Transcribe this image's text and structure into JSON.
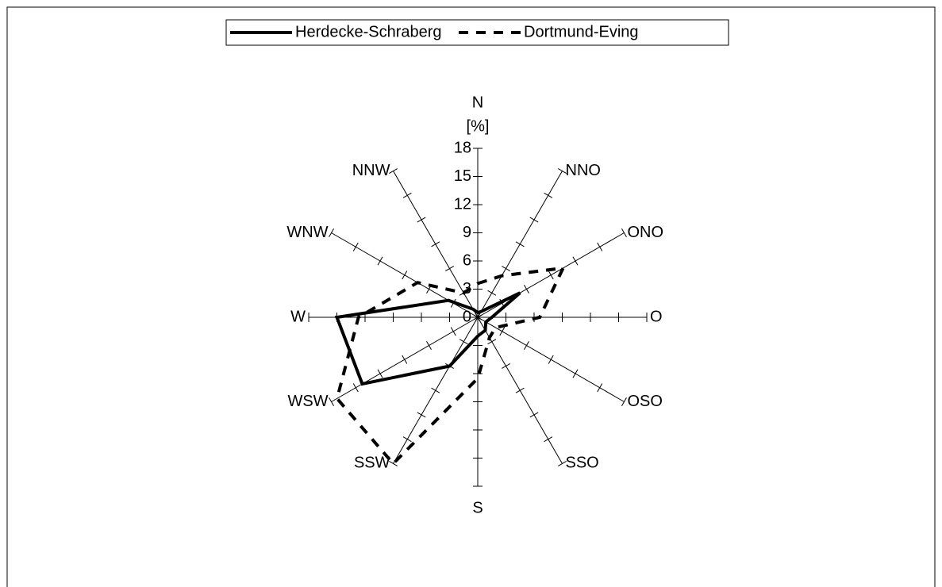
{
  "chart_data": {
    "type": "radar",
    "axis_title": "N",
    "unit_label": "[%]",
    "categories": [
      "N",
      "NNO",
      "ONO",
      "O",
      "OSO",
      "SSO",
      "S",
      "SSW",
      "WSW",
      "W",
      "WNW",
      "NNW"
    ],
    "series": [
      {
        "name": "Herdecke-Schraberg",
        "color": "#000000",
        "dash": "solid",
        "values": [
          0.5,
          0.7,
          5.2,
          1.5,
          1,
          1.6,
          2,
          6,
          14.2,
          15,
          3.6,
          1
        ]
      },
      {
        "name": "Dortmund-Eving",
        "color": "#000000",
        "dash": "dashed",
        "values": [
          3.6,
          5.1,
          10.5,
          6.6,
          2.2,
          2.5,
          6.5,
          18,
          17.3,
          12.7,
          7.4,
          3
        ]
      }
    ],
    "ylim": [
      0,
      18
    ],
    "yticks": [
      0,
      3,
      6,
      9,
      12,
      15,
      18
    ],
    "legend": "top"
  }
}
